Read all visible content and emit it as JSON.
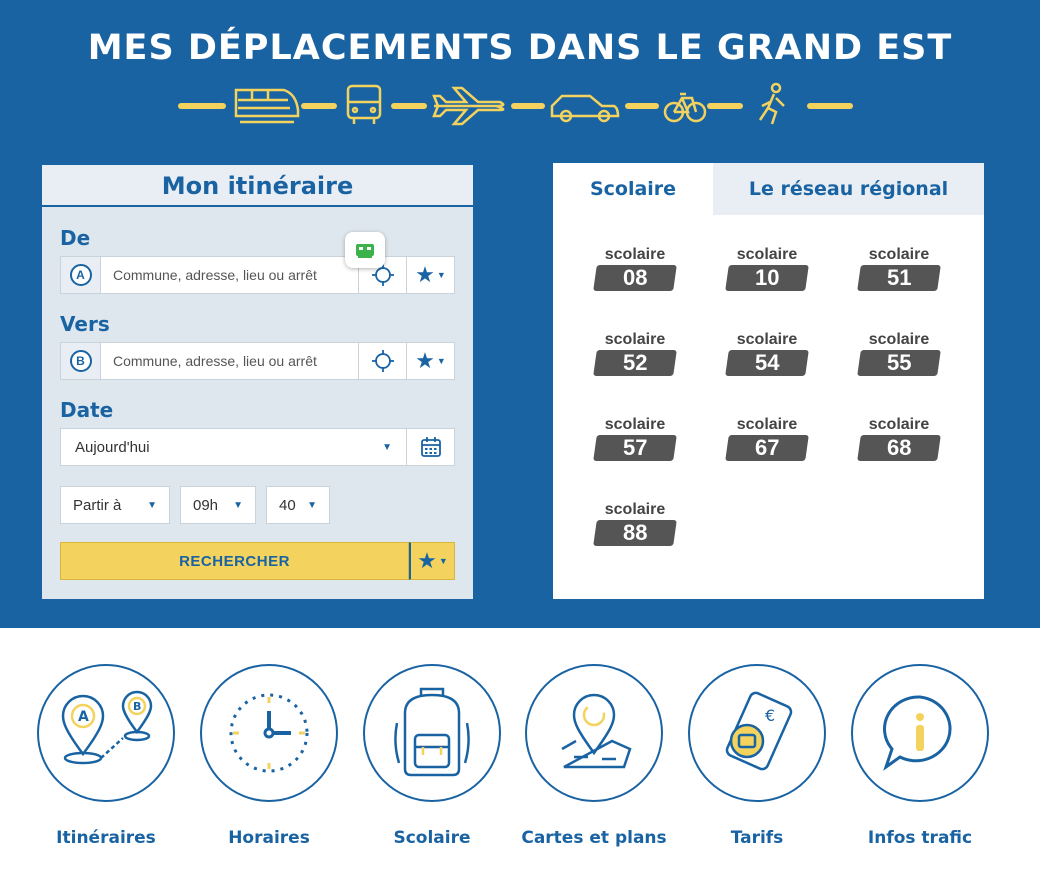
{
  "header": {
    "title": "MES DÉPLACEMENTS DANS LE GRAND EST",
    "mode_icons": [
      "train-icon",
      "bus-icon",
      "plane-icon",
      "car-icon",
      "bike-icon",
      "pedestrian-icon"
    ]
  },
  "itinerary": {
    "title": "Mon itinéraire",
    "from_label": "De",
    "from_badge": "A",
    "from_placeholder": "Commune, adresse, lieu ou arrêt",
    "to_label": "Vers",
    "to_badge": "B",
    "to_placeholder": "Commune, adresse, lieu ou arrêt",
    "date_label": "Date",
    "date_value": "Aujourd'hui",
    "depart_mode": "Partir à",
    "hour": "09h",
    "minute": "40",
    "search_label": "RECHERCHER"
  },
  "network": {
    "tabs": [
      "Scolaire",
      "Le réseau régional"
    ],
    "active_tab": "Scolaire",
    "lines": [
      {
        "label": "scolaire",
        "number": "08"
      },
      {
        "label": "scolaire",
        "number": "10"
      },
      {
        "label": "scolaire",
        "number": "51"
      },
      {
        "label": "scolaire",
        "number": "52"
      },
      {
        "label": "scolaire",
        "number": "54"
      },
      {
        "label": "scolaire",
        "number": "55"
      },
      {
        "label": "scolaire",
        "number": "57"
      },
      {
        "label": "scolaire",
        "number": "67"
      },
      {
        "label": "scolaire",
        "number": "68"
      },
      {
        "label": "scolaire",
        "number": "88"
      }
    ]
  },
  "services": [
    {
      "label": "Itinéraires",
      "icon": "itinerary-pins-icon"
    },
    {
      "label": "Horaires",
      "icon": "clock-icon"
    },
    {
      "label": "Scolaire",
      "icon": "backpack-icon"
    },
    {
      "label": "Cartes et plans",
      "icon": "map-pin-icon"
    },
    {
      "label": "Tarifs",
      "icon": "ticket-card-icon"
    },
    {
      "label": "Infos trafic",
      "icon": "info-bubble-icon"
    }
  ],
  "colors": {
    "primary": "#1a63a3",
    "accent": "#f3d35d",
    "chip": "#555555"
  }
}
